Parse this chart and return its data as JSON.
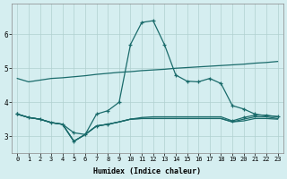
{
  "xlabel": "Humidex (Indice chaleur)",
  "bg_color": "#d5eef0",
  "grid_color": "#b0d0d0",
  "line_color": "#1a6b6b",
  "xlim": [
    -0.5,
    23.5
  ],
  "ylim": [
    2.5,
    6.9
  ],
  "yticks": [
    3,
    4,
    5,
    6
  ],
  "xticks": [
    0,
    1,
    2,
    3,
    4,
    5,
    6,
    7,
    8,
    9,
    10,
    11,
    12,
    13,
    14,
    15,
    16,
    17,
    18,
    19,
    20,
    21,
    22,
    23
  ],
  "line1_x": [
    0,
    1,
    2,
    3,
    4,
    5,
    6,
    7,
    8,
    9,
    10,
    11,
    12,
    13,
    14,
    15,
    16,
    17,
    18,
    19,
    20,
    21,
    22,
    23
  ],
  "line1_y": [
    4.7,
    4.6,
    4.65,
    4.7,
    4.72,
    4.75,
    4.78,
    4.82,
    4.85,
    4.88,
    4.9,
    4.93,
    4.95,
    4.97,
    5.0,
    5.02,
    5.04,
    5.06,
    5.08,
    5.1,
    5.12,
    5.15,
    5.17,
    5.2
  ],
  "line2_x": [
    0,
    1,
    2,
    3,
    4,
    5,
    6,
    7,
    8,
    9,
    10,
    11,
    12,
    13,
    14,
    15,
    16,
    17,
    18,
    19,
    20,
    21,
    22,
    23
  ],
  "line2_y": [
    3.65,
    3.55,
    3.5,
    3.4,
    3.35,
    3.1,
    3.05,
    3.65,
    3.75,
    4.0,
    5.7,
    6.35,
    6.4,
    5.7,
    4.8,
    4.62,
    4.6,
    4.7,
    4.55,
    3.9,
    3.8,
    3.65,
    3.6,
    3.58
  ],
  "line3_x": [
    0,
    1,
    2,
    3,
    4,
    5,
    6,
    7,
    8,
    9,
    10,
    11,
    12,
    13,
    14,
    15,
    16,
    17,
    18,
    19,
    20,
    21,
    22,
    23
  ],
  "line3_y": [
    3.65,
    3.55,
    3.5,
    3.4,
    3.35,
    2.85,
    3.05,
    3.3,
    3.35,
    3.42,
    3.5,
    3.55,
    3.57,
    3.57,
    3.57,
    3.57,
    3.57,
    3.57,
    3.57,
    3.45,
    3.55,
    3.62,
    3.62,
    3.57
  ],
  "line4_x": [
    0,
    1,
    2,
    3,
    4,
    5,
    6,
    7,
    8,
    9,
    10,
    11,
    12,
    13,
    14,
    15,
    16,
    17,
    18,
    19,
    20,
    21,
    22,
    23
  ],
  "line4_y": [
    3.65,
    3.55,
    3.5,
    3.4,
    3.35,
    2.85,
    3.05,
    3.3,
    3.35,
    3.42,
    3.5,
    3.52,
    3.52,
    3.52,
    3.52,
    3.52,
    3.52,
    3.52,
    3.52,
    3.42,
    3.5,
    3.57,
    3.57,
    3.52
  ],
  "line5_x": [
    0,
    1,
    2,
    3,
    4,
    5,
    6,
    7,
    8,
    9,
    10,
    11,
    12,
    13,
    14,
    15,
    16,
    17,
    18,
    19,
    20,
    21,
    22,
    23
  ],
  "line5_y": [
    3.65,
    3.55,
    3.5,
    3.4,
    3.35,
    2.85,
    3.05,
    3.3,
    3.35,
    3.42,
    3.5,
    3.52,
    3.52,
    3.52,
    3.52,
    3.52,
    3.52,
    3.52,
    3.52,
    3.42,
    3.45,
    3.52,
    3.52,
    3.5
  ],
  "markers2_x": [
    0,
    1,
    5,
    7,
    9,
    10,
    11,
    12,
    13,
    14,
    16,
    17,
    18,
    19,
    21,
    22,
    23
  ],
  "markers2_y": [
    3.65,
    3.55,
    3.1,
    3.65,
    4.0,
    5.7,
    6.35,
    6.4,
    5.7,
    4.8,
    4.6,
    4.7,
    4.55,
    3.9,
    3.65,
    3.6,
    3.58
  ],
  "markers3_x": [
    0,
    5,
    7,
    8,
    20,
    21
  ],
  "markers3_y": [
    3.65,
    2.85,
    3.3,
    3.35,
    3.55,
    3.62
  ]
}
